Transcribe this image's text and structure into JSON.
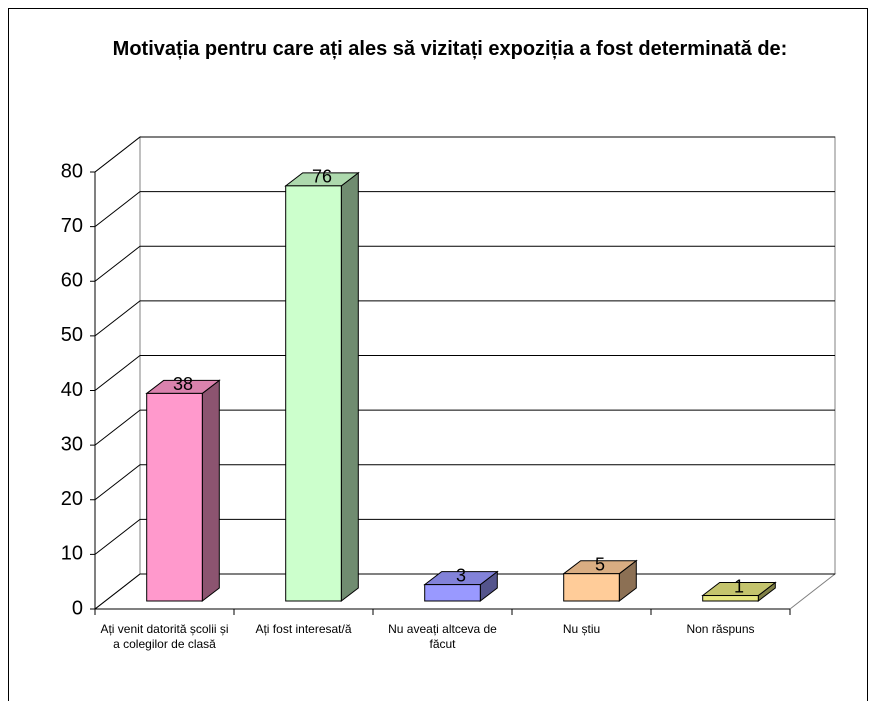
{
  "chart_data": {
    "type": "bar",
    "title": "Motivația pentru care ați ales să vizitați expoziția a fost determinată de:",
    "categories": [
      "Ați venit datorită școlii și a colegilor de clasă",
      "Ați fost interesat/ă",
      "Nu aveați altceva de făcut",
      "Nu știu",
      "Non răspuns"
    ],
    "values": [
      38,
      76,
      3,
      5,
      1
    ],
    "colors": [
      "#ff99cc",
      "#ccffcc",
      "#9999ff",
      "#ffcc99",
      "#e6e680"
    ],
    "ylim": [
      0,
      80
    ],
    "yticks": [
      0,
      10,
      20,
      30,
      40,
      50,
      60,
      70,
      80
    ],
    "grid": true
  }
}
